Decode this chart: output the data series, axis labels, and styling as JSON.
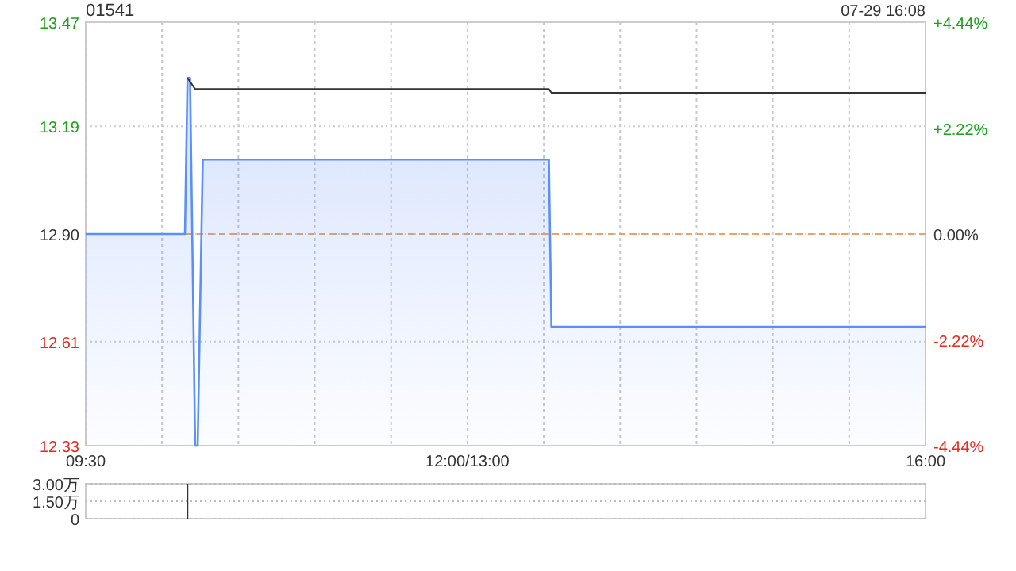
{
  "chart_data": [
    {
      "type": "area",
      "title": "01541",
      "annotations": [
        "07-29 16:08"
      ],
      "categories": [
        "09:30",
        null,
        null,
        null,
        null,
        null,
        null,
        null,
        null,
        null,
        null,
        null,
        null,
        null,
        null,
        null,
        null,
        null,
        null,
        null,
        null,
        null,
        null,
        null,
        null,
        null,
        null,
        null,
        null,
        null,
        null,
        null,
        null,
        null,
        null,
        null,
        null,
        null,
        null,
        null,
        null,
        null,
        null,
        null,
        null,
        null,
        null,
        null,
        null,
        null,
        null,
        null,
        null,
        null,
        null,
        null,
        null,
        null,
        null,
        null,
        null,
        null,
        null,
        null,
        null,
        null,
        null,
        null,
        null,
        null,
        null,
        null,
        null,
        null,
        null,
        null,
        null,
        null,
        null,
        null,
        null,
        null,
        null,
        null,
        null,
        null,
        null,
        null,
        null,
        null,
        null,
        null,
        null,
        null,
        null,
        null,
        null,
        null,
        null,
        null,
        null,
        null,
        null,
        null,
        null,
        null,
        null,
        null,
        null,
        null,
        null,
        null,
        null,
        null,
        null,
        null,
        null,
        null,
        null,
        null,
        null,
        null,
        null,
        null,
        null,
        null,
        null,
        null,
        null,
        null,
        null,
        null,
        null,
        null,
        null,
        null,
        null,
        null,
        null,
        null,
        null,
        null,
        null,
        null,
        null,
        null,
        null,
        null,
        null,
        null,
        "12:00/13:00",
        null,
        null,
        null,
        null,
        null,
        null,
        null,
        null,
        null,
        null,
        null,
        null,
        null,
        null,
        null,
        null,
        null,
        null,
        null,
        null,
        null,
        null,
        null,
        null,
        null,
        null,
        null,
        null,
        null,
        null,
        null,
        null,
        null,
        null,
        null,
        null,
        null,
        null,
        null,
        null,
        null,
        null,
        null,
        null,
        null,
        null,
        null,
        null,
        null,
        null,
        null,
        null,
        null,
        null,
        null,
        null,
        null,
        null,
        null,
        null,
        null,
        null,
        null,
        null,
        null,
        null,
        null,
        null,
        null,
        null,
        null,
        null,
        null,
        null,
        null,
        null,
        null,
        null,
        null,
        null,
        null,
        null,
        null,
        null,
        null,
        null,
        null,
        null,
        null,
        null,
        null,
        null,
        null,
        null,
        null,
        null,
        null,
        null,
        null,
        null,
        null,
        null,
        null,
        null,
        null,
        null,
        null,
        null,
        null,
        null,
        null,
        null,
        null,
        null,
        null,
        null,
        null,
        null,
        null,
        null,
        null,
        null,
        null,
        null,
        null,
        null,
        null,
        null,
        null,
        null,
        null,
        null,
        null,
        null,
        null,
        null,
        null,
        null,
        null,
        null,
        null,
        null,
        null,
        null,
        null,
        null,
        null,
        null,
        null,
        null,
        null,
        null,
        null,
        null,
        null,
        null,
        null,
        null,
        null,
        null,
        null,
        null,
        null,
        null,
        null,
        null,
        null,
        null,
        null,
        null,
        null,
        null,
        null,
        null,
        null,
        null,
        null,
        null,
        null,
        "16:00"
      ],
      "ylim": [
        12.33,
        13.47
      ],
      "yticks": [
        12.33,
        12.61,
        {
          "value": 12.9,
          "label": "12.90"
        },
        13.19,
        13.47
      ],
      "y2lim": [
        -4.44,
        4.44
      ],
      "y2ticks": [
        {
          "value": -4.44,
          "label": "-4.44%"
        },
        {
          "value": -2.22,
          "label": "-2.22%"
        },
        {
          "value": 0,
          "label": "0.00%"
        },
        {
          "value": 2.22,
          "label": "+2.22%"
        },
        {
          "value": 4.44,
          "label": "+4.44%"
        }
      ],
      "grid": true,
      "ref_lines": [
        {
          "axis": "y",
          "value": 12.9,
          "color": "#f0a060",
          "line_style": "dashed"
        }
      ],
      "series": [
        {
          "type": "area",
          "color": "#5b8ff9",
          "values": [
            12.9,
            12.9,
            12.9,
            12.9,
            12.9,
            12.9,
            12.9,
            12.9,
            12.9,
            12.9,
            12.9,
            12.9,
            12.9,
            12.9,
            12.9,
            12.9,
            12.9,
            12.9,
            12.9,
            12.9,
            12.9,
            12.9,
            12.9,
            12.9,
            12.9,
            12.9,
            12.9,
            12.9,
            12.9,
            12.9,
            12.9,
            12.9,
            12.9,
            12.9,
            12.9,
            12.9,
            12.9,
            12.9,
            12.9,
            12.9,
            13.32,
            13.32,
            12.83,
            12.33,
            12.33,
            12.72,
            13.1,
            13.1,
            13.1,
            13.1,
            13.1,
            13.1,
            13.1,
            13.1,
            13.1,
            13.1,
            13.1,
            13.1,
            13.1,
            13.1,
            13.1,
            13.1,
            13.1,
            13.1,
            13.1,
            13.1,
            13.1,
            13.1,
            13.1,
            13.1,
            13.1,
            13.1,
            13.1,
            13.1,
            13.1,
            13.1,
            13.1,
            13.1,
            13.1,
            13.1,
            13.1,
            13.1,
            13.1,
            13.1,
            13.1,
            13.1,
            13.1,
            13.1,
            13.1,
            13.1,
            13.1,
            13.1,
            13.1,
            13.1,
            13.1,
            13.1,
            13.1,
            13.1,
            13.1,
            13.1,
            13.1,
            13.1,
            13.1,
            13.1,
            13.1,
            13.1,
            13.1,
            13.1,
            13.1,
            13.1,
            13.1,
            13.1,
            13.1,
            13.1,
            13.1,
            13.1,
            13.1,
            13.1,
            13.1,
            13.1,
            13.1,
            13.1,
            13.1,
            13.1,
            13.1,
            13.1,
            13.1,
            13.1,
            13.1,
            13.1,
            13.1,
            13.1,
            13.1,
            13.1,
            13.1,
            13.1,
            13.1,
            13.1,
            13.1,
            13.1,
            13.1,
            13.1,
            13.1,
            13.1,
            13.1,
            13.1,
            13.1,
            13.1,
            13.1,
            13.1,
            13.1,
            13.1,
            13.1,
            13.1,
            13.1,
            13.1,
            13.1,
            13.1,
            13.1,
            13.1,
            13.1,
            13.1,
            13.1,
            13.1,
            13.1,
            13.1,
            13.1,
            13.1,
            13.1,
            13.1,
            13.1,
            13.1,
            13.1,
            13.1,
            13.1,
            13.1,
            13.1,
            13.1,
            13.1,
            13.1,
            13.1,
            13.1,
            13.1,
            12.65,
            12.65,
            12.65,
            12.65,
            12.65,
            12.65,
            12.65,
            12.65,
            12.65,
            12.65,
            12.65,
            12.65,
            12.65,
            12.65,
            12.65,
            12.65,
            12.65,
            12.65,
            12.65,
            12.65,
            12.65,
            12.65,
            12.65,
            12.65,
            12.65,
            12.65,
            12.65,
            12.65,
            12.65,
            12.65,
            12.65,
            12.65,
            12.65,
            12.65,
            12.65,
            12.65,
            12.65,
            12.65,
            12.65,
            12.65,
            12.65,
            12.65,
            12.65,
            12.65,
            12.65,
            12.65,
            12.65,
            12.65,
            12.65,
            12.65,
            12.65,
            12.65,
            12.65,
            12.65,
            12.65,
            12.65,
            12.65,
            12.65,
            12.65,
            12.65,
            12.65,
            12.65,
            12.65,
            12.65,
            12.65,
            12.65,
            12.65,
            12.65,
            12.65,
            12.65,
            12.65,
            12.65,
            12.65,
            12.65,
            12.65,
            12.65,
            12.65,
            12.65,
            12.65,
            12.65,
            12.65,
            12.65,
            12.65,
            12.65,
            12.65,
            12.65,
            12.65,
            12.65,
            12.65,
            12.65,
            12.65,
            12.65,
            12.65,
            12.65,
            12.65,
            12.65,
            12.65,
            12.65,
            12.65,
            12.65,
            12.65,
            12.65,
            12.65,
            12.65,
            12.65,
            12.65,
            12.65,
            12.65,
            12.65,
            12.65,
            12.65,
            12.65,
            12.65,
            12.65,
            12.65,
            12.65,
            12.65,
            12.65,
            12.65,
            12.65,
            12.65,
            12.65,
            12.65,
            12.65,
            12.65,
            12.65,
            12.65,
            12.65,
            12.65,
            12.65,
            12.65,
            12.65,
            12.65,
            12.65,
            12.65,
            12.65,
            12.65,
            12.65,
            12.65,
            12.65,
            12.65,
            12.65,
            12.65,
            12.65,
            12.65,
            12.65,
            12.65,
            12.65
          ]
        },
        {
          "type": "line",
          "color": "#333333",
          "values": [
            null,
            null,
            null,
            null,
            null,
            null,
            null,
            null,
            null,
            null,
            null,
            null,
            null,
            null,
            null,
            null,
            null,
            null,
            null,
            null,
            null,
            null,
            null,
            null,
            null,
            null,
            null,
            null,
            null,
            null,
            null,
            null,
            null,
            null,
            null,
            null,
            null,
            null,
            null,
            null,
            13.32,
            13.31,
            13.3,
            13.29,
            13.29,
            13.29,
            13.29,
            13.29,
            13.29,
            13.29,
            13.29,
            13.29,
            13.29,
            13.29,
            13.29,
            13.29,
            13.29,
            13.29,
            13.29,
            13.29,
            13.29,
            13.29,
            13.29,
            13.29,
            13.29,
            13.29,
            13.29,
            13.29,
            13.29,
            13.29,
            13.29,
            13.29,
            13.29,
            13.29,
            13.29,
            13.29,
            13.29,
            13.29,
            13.29,
            13.29,
            13.29,
            13.29,
            13.29,
            13.29,
            13.29,
            13.29,
            13.29,
            13.29,
            13.29,
            13.29,
            13.29,
            13.29,
            13.29,
            13.29,
            13.29,
            13.29,
            13.29,
            13.29,
            13.29,
            13.29,
            13.29,
            13.29,
            13.29,
            13.29,
            13.29,
            13.29,
            13.29,
            13.29,
            13.29,
            13.29,
            13.29,
            13.29,
            13.29,
            13.29,
            13.29,
            13.29,
            13.29,
            13.29,
            13.29,
            13.29,
            13.29,
            13.29,
            13.29,
            13.29,
            13.29,
            13.29,
            13.29,
            13.29,
            13.29,
            13.29,
            13.29,
            13.29,
            13.29,
            13.29,
            13.29,
            13.29,
            13.29,
            13.29,
            13.29,
            13.29,
            13.29,
            13.29,
            13.29,
            13.29,
            13.29,
            13.29,
            13.29,
            13.29,
            13.29,
            13.29,
            13.29,
            13.29,
            13.29,
            13.29,
            13.29,
            13.29,
            13.29,
            13.29,
            13.29,
            13.29,
            13.29,
            13.29,
            13.29,
            13.29,
            13.29,
            13.29,
            13.29,
            13.29,
            13.29,
            13.29,
            13.29,
            13.29,
            13.29,
            13.29,
            13.29,
            13.29,
            13.29,
            13.29,
            13.29,
            13.29,
            13.29,
            13.29,
            13.29,
            13.28,
            13.28,
            13.28,
            13.28,
            13.28,
            13.28,
            13.28,
            13.28,
            13.28,
            13.28,
            13.28,
            13.28,
            13.28,
            13.28,
            13.28,
            13.28,
            13.28,
            13.28,
            13.28,
            13.28,
            13.28,
            13.28,
            13.28,
            13.28,
            13.28,
            13.28,
            13.28,
            13.28,
            13.28,
            13.28,
            13.28,
            13.28,
            13.28,
            13.28,
            13.28,
            13.28,
            13.28,
            13.28,
            13.28,
            13.28,
            13.28,
            13.28,
            13.28,
            13.28,
            13.28,
            13.28,
            13.28,
            13.28,
            13.28,
            13.28,
            13.28,
            13.28,
            13.28,
            13.28,
            13.28,
            13.28,
            13.28,
            13.28,
            13.28,
            13.28,
            13.28,
            13.28,
            13.28,
            13.28,
            13.28,
            13.28,
            13.28,
            13.28,
            13.28,
            13.28,
            13.28,
            13.28,
            13.28,
            13.28,
            13.28,
            13.28,
            13.28,
            13.28,
            13.28,
            13.28,
            13.28,
            13.28,
            13.28,
            13.28,
            13.28,
            13.28,
            13.28,
            13.28,
            13.28,
            13.28,
            13.28,
            13.28,
            13.28,
            13.28,
            13.28,
            13.28,
            13.28,
            13.28,
            13.28,
            13.28,
            13.28,
            13.28,
            13.28,
            13.28,
            13.28,
            13.28,
            13.28,
            13.28,
            13.28,
            13.28,
            13.28,
            13.28,
            13.28,
            13.28,
            13.28,
            13.28,
            13.28,
            13.28,
            13.28,
            13.28,
            13.28,
            13.28,
            13.28,
            13.28,
            13.28,
            13.28,
            13.28,
            13.28,
            13.28,
            13.28,
            13.28,
            13.28,
            13.28,
            13.28,
            13.28,
            13.28,
            13.28,
            13.28,
            13.28,
            13.28,
            13.28,
            13.28,
            13.28,
            13.28,
            13.28,
            13.28,
            13.28,
            13.28
          ]
        }
      ]
    },
    {
      "type": "bar",
      "categories": [
        null,
        null,
        null,
        null,
        null,
        null,
        null,
        null,
        null,
        null,
        null,
        null,
        null,
        null,
        null,
        null,
        null,
        null,
        null,
        null,
        null,
        null,
        null,
        null,
        null,
        null,
        null,
        null,
        null,
        null,
        null,
        null,
        null,
        null,
        null,
        null,
        null,
        null,
        null,
        null,
        null,
        null,
        null,
        null,
        null,
        null,
        null,
        null,
        null,
        null,
        null,
        null,
        null,
        null,
        null,
        null,
        null,
        null,
        null,
        null,
        null,
        null,
        null,
        null,
        null,
        null,
        null,
        null,
        null,
        null,
        null,
        null,
        null,
        null,
        null,
        null,
        null,
        null,
        null,
        null,
        null,
        null,
        null,
        null,
        null,
        null,
        null,
        null,
        null,
        null,
        null,
        null,
        null,
        null,
        null,
        null,
        null,
        null,
        null,
        null,
        null,
        null,
        null,
        null,
        null,
        null,
        null,
        null,
        null,
        null,
        null,
        null,
        null,
        null,
        null,
        null,
        null,
        null,
        null,
        null,
        null,
        null,
        null,
        null,
        null,
        null,
        null,
        null,
        null,
        null,
        null,
        null,
        null,
        null,
        null,
        null,
        null,
        null,
        null,
        null,
        null,
        null,
        null,
        null,
        null,
        null,
        null,
        null,
        null,
        null,
        null,
        null,
        null,
        null,
        null,
        null,
        null,
        null,
        null,
        null,
        null,
        null,
        null,
        null,
        null,
        null,
        null,
        null,
        null,
        null,
        null,
        null,
        null,
        null,
        null,
        null,
        null,
        null,
        null,
        null,
        null,
        null,
        null,
        null,
        null,
        null,
        null,
        null,
        null,
        null,
        null,
        null,
        null,
        null,
        null,
        null,
        null,
        null,
        null,
        null,
        null,
        null,
        null,
        null,
        null,
        null,
        null,
        null,
        null,
        null,
        null,
        null,
        null,
        null,
        null,
        null,
        null,
        null,
        null,
        null,
        null,
        null,
        null,
        null,
        null,
        null,
        null,
        null,
        null,
        null,
        null,
        null,
        null,
        null,
        null,
        null,
        null,
        null,
        null,
        null,
        null,
        null,
        null,
        null,
        null,
        null,
        null,
        null,
        null,
        null,
        null,
        null,
        null,
        null,
        null,
        null,
        null,
        null,
        null,
        null,
        null,
        null,
        null,
        null,
        null,
        null,
        null,
        null,
        null,
        null,
        null,
        null,
        null,
        null,
        null,
        null,
        null,
        null,
        null,
        null,
        null,
        null,
        null,
        null,
        null,
        null,
        null,
        null,
        null,
        null,
        null,
        null,
        null,
        null,
        null,
        null,
        null,
        null,
        null,
        null,
        null,
        null,
        null,
        null,
        null,
        null,
        null,
        null,
        null,
        null,
        null,
        null,
        null,
        null,
        null,
        null,
        null,
        null,
        null,
        null,
        null,
        null,
        null,
        null,
        null,
        null,
        null,
        null,
        null,
        null,
        null
      ],
      "values": [
        null,
        null,
        null,
        null,
        null,
        null,
        null,
        null,
        null,
        null,
        null,
        null,
        null,
        null,
        null,
        null,
        null,
        null,
        null,
        null,
        null,
        null,
        null,
        null,
        null,
        null,
        null,
        null,
        null,
        null,
        null,
        null,
        null,
        null,
        null,
        null,
        null,
        null,
        null,
        null,
        3,
        null,
        null,
        null,
        null,
        null,
        null,
        null,
        null,
        null,
        null,
        null,
        null,
        null,
        null,
        null,
        null,
        null,
        null,
        null,
        null,
        null,
        null,
        null,
        null,
        null,
        null,
        null,
        null,
        null,
        null,
        null,
        null,
        null,
        null,
        null,
        null,
        null,
        null,
        null,
        null,
        null,
        null,
        null,
        null,
        null,
        null,
        null,
        null,
        null,
        null,
        null,
        null,
        null,
        null,
        null,
        null,
        null,
        null,
        null,
        null,
        null,
        null,
        null,
        null,
        null,
        null,
        null,
        null,
        null,
        null,
        null,
        null,
        null,
        null,
        null,
        null,
        null,
        null,
        null,
        null,
        null,
        null,
        null,
        null,
        null,
        null,
        null,
        null,
        null,
        null,
        null,
        null,
        null,
        null,
        null,
        null,
        null,
        null,
        null,
        null,
        null,
        null,
        null,
        null,
        null,
        null,
        null,
        null,
        null,
        null,
        null,
        null,
        null,
        null,
        null,
        null,
        null,
        null,
        null,
        null,
        null,
        null,
        null,
        null,
        null,
        null,
        null,
        null,
        null,
        null,
        null,
        null,
        null,
        null,
        null,
        null,
        null,
        null,
        null,
        null,
        null,
        null,
        null,
        null,
        null,
        null,
        null,
        null,
        null,
        null,
        null,
        null,
        null,
        null,
        null,
        null,
        null,
        null,
        null,
        null,
        null,
        null,
        null,
        null,
        null,
        null,
        null,
        null,
        null,
        null,
        null,
        null,
        null,
        null,
        null,
        null,
        null,
        null,
        null,
        null,
        null,
        null,
        null,
        null,
        null,
        null,
        null,
        null,
        null,
        null,
        null,
        null,
        null,
        null,
        null,
        null,
        null,
        null,
        null,
        null,
        null,
        null,
        null,
        null,
        null,
        null,
        null,
        null,
        null,
        null,
        null,
        null,
        null,
        null,
        null,
        null,
        null,
        null,
        null,
        null,
        null,
        null,
        null,
        null,
        null,
        null,
        null,
        null,
        null,
        null,
        null,
        null,
        null,
        null,
        null,
        null,
        null,
        null,
        null,
        null,
        null,
        null,
        null,
        null,
        null,
        null,
        null,
        null,
        null,
        null,
        null,
        null,
        null,
        null,
        null,
        null,
        null,
        null,
        null,
        null,
        null,
        null,
        null,
        null,
        null,
        null,
        null,
        null,
        null,
        null,
        null,
        null,
        null,
        null,
        null,
        null,
        null,
        null,
        null,
        null,
        null,
        null,
        null,
        null,
        null,
        null,
        null,
        null,
        null,
        null
      ],
      "color": "#333333",
      "ylim": [
        0,
        3
      ],
      "yticks": [
        {
          "value": 0,
          "label": "0"
        },
        {
          "value": 1.5,
          "label": "1.50万"
        },
        {
          "value": 3,
          "label": "3.00万"
        }
      ],
      "grid": "y",
      "tick_labels": "y"
    }
  ]
}
